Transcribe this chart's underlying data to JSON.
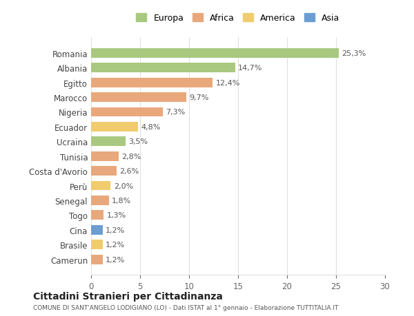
{
  "countries": [
    "Romania",
    "Albania",
    "Egitto",
    "Marocco",
    "Nigeria",
    "Ecuador",
    "Ucraina",
    "Tunisia",
    "Costa d'Avorio",
    "Perù",
    "Senegal",
    "Togo",
    "Cina",
    "Brasile",
    "Camerun"
  ],
  "values": [
    25.3,
    14.7,
    12.4,
    9.7,
    7.3,
    4.8,
    3.5,
    2.8,
    2.6,
    2.0,
    1.8,
    1.3,
    1.2,
    1.2,
    1.2
  ],
  "labels": [
    "25,3%",
    "14,7%",
    "12,4%",
    "9,7%",
    "7,3%",
    "4,8%",
    "3,5%",
    "2,8%",
    "2,6%",
    "2,0%",
    "1,8%",
    "1,3%",
    "1,2%",
    "1,2%",
    "1,2%"
  ],
  "continents": [
    "Europa",
    "Europa",
    "Africa",
    "Africa",
    "Africa",
    "America",
    "Europa",
    "Africa",
    "Africa",
    "America",
    "Africa",
    "Africa",
    "Asia",
    "America",
    "Africa"
  ],
  "colors": {
    "Europa": "#a8c97f",
    "Africa": "#e8a87c",
    "America": "#f0cc6e",
    "Asia": "#6b9dd1"
  },
  "legend_order": [
    "Europa",
    "Africa",
    "America",
    "Asia"
  ],
  "legend_colors": [
    "#a8c97f",
    "#e8a87c",
    "#f0cc6e",
    "#6b9dd1"
  ],
  "title": "Cittadini Stranieri per Cittadinanza",
  "subtitle": "COMUNE DI SANT'ANGELO LODIGIANO (LO) - Dati ISTAT al 1° gennaio - Elaborazione TUTTITALIA.IT",
  "xlim": [
    0,
    30
  ],
  "xticks": [
    0,
    5,
    10,
    15,
    20,
    25,
    30
  ],
  "background_color": "#ffffff",
  "grid_color": "#e0e0e0",
  "bar_height": 0.65
}
